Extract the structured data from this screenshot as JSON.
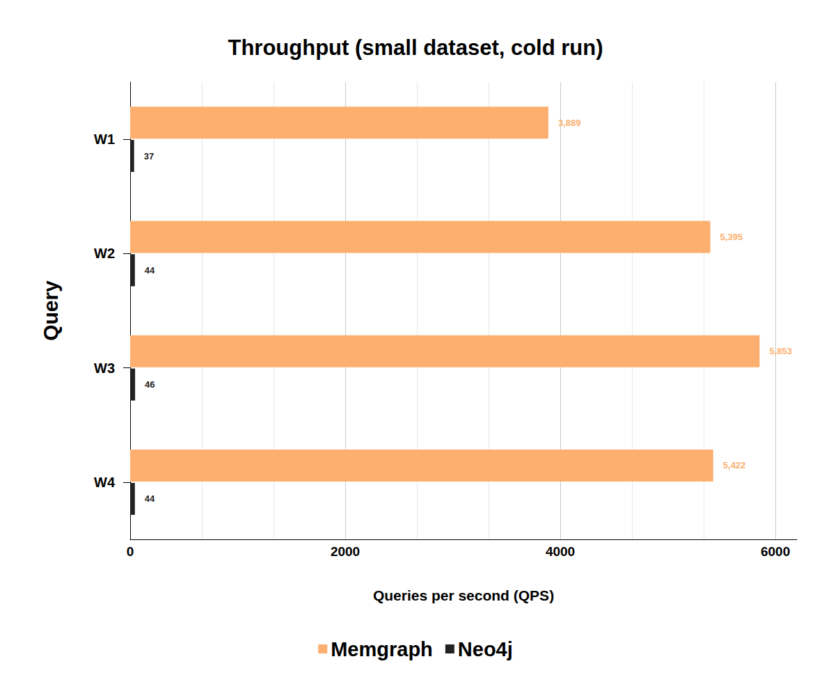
{
  "chart_data": {
    "type": "bar",
    "orientation": "horizontal",
    "title": "Throughput (small dataset, cold run)",
    "x_label": "Queries per second (QPS)",
    "y_label": "Query",
    "categories": [
      "W1",
      "W2",
      "W3",
      "W4"
    ],
    "series": [
      {
        "name": "Memgraph",
        "color": "#fcaf6f",
        "values": [
          3889,
          5395,
          5853,
          5422
        ],
        "value_labels": [
          "3,889",
          "5,395",
          "5,853",
          "5,422"
        ]
      },
      {
        "name": "Neo4j",
        "color": "#222222",
        "values": [
          37,
          44,
          46,
          44
        ]
      }
    ],
    "xlim": [
      0,
      6200
    ],
    "xticks": [
      0,
      2000,
      4000,
      6000
    ],
    "grid": true,
    "data_labels": true,
    "legend": "bottom"
  }
}
